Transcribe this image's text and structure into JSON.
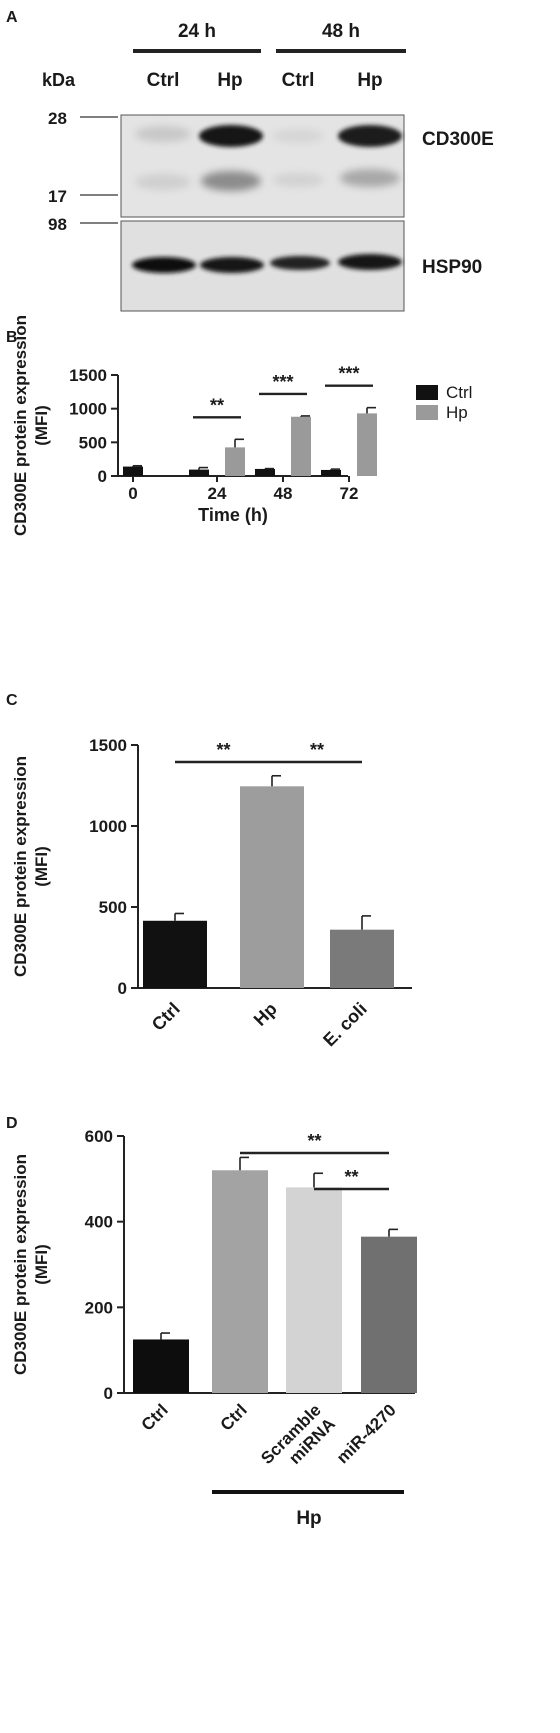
{
  "panel_a": {
    "letter": "A",
    "kda_label": "kDa",
    "time_groups": [
      "24 h",
      "48 h"
    ],
    "lanes": [
      "Ctrl",
      "Hp",
      "Ctrl",
      "Hp"
    ],
    "marker_upper": [
      "28",
      "17"
    ],
    "marker_lower": [
      "98"
    ],
    "band_upper": "CD300E",
    "band_lower": "HSP90"
  },
  "chart_data": [
    {
      "panel": "B",
      "type": "bar",
      "categories": [
        "0",
        "24",
        "48",
        "72"
      ],
      "series": [
        {
          "name": "Ctrl",
          "values": [
            140,
            95,
            105,
            90
          ],
          "errors": [
            12,
            30,
            5,
            12
          ],
          "color": "#111111"
        },
        {
          "name": "Hp",
          "values": [
            null,
            425,
            880,
            930
          ],
          "errors": [
            null,
            120,
            12,
            85
          ],
          "color": "#9a9a9a"
        }
      ],
      "xlabel": "Time (h)",
      "ylabel": "CD300E protein expression (MFI)",
      "ylim": [
        0,
        1500
      ],
      "yticks": [
        "0",
        "500",
        "1000",
        "1500"
      ],
      "legend": "top-right",
      "significance": [
        {
          "category": "24",
          "label": "**"
        },
        {
          "category": "48",
          "label": "***"
        },
        {
          "category": "72",
          "label": "***"
        }
      ]
    },
    {
      "panel": "C",
      "type": "bar",
      "categories": [
        "Ctrl",
        "Hp",
        "E. coli"
      ],
      "values": [
        415,
        1245,
        360
      ],
      "errors": [
        45,
        65,
        85
      ],
      "colors": [
        "#111111",
        "#9d9d9d",
        "#7a7a7a"
      ],
      "ylabel": "CD300E protein expression (MFI)",
      "ylim": [
        0,
        1500
      ],
      "yticks": [
        "0",
        "500",
        "1000",
        "1500"
      ],
      "significance": [
        {
          "from": "Ctrl",
          "to": "Hp",
          "label": "**"
        },
        {
          "from": "Hp",
          "to": "E. coli",
          "label": "**"
        }
      ]
    },
    {
      "panel": "D",
      "type": "bar",
      "categories": [
        "Ctrl",
        "Ctrl",
        "Scramble miRNA",
        "miR-4270"
      ],
      "values": [
        125,
        520,
        480,
        365
      ],
      "errors": [
        15,
        30,
        33,
        17
      ],
      "colors": [
        "#0d0d0d",
        "#a3a3a3",
        "#d3d3d3",
        "#707070"
      ],
      "ylabel": "CD300E protein expression (MFI)",
      "ylim": [
        0,
        600
      ],
      "yticks": [
        "0",
        "200",
        "400",
        "600"
      ],
      "group_label": "Hp",
      "significance": [
        {
          "from": "Ctrl",
          "to": "miR-4270",
          "label": "**"
        },
        {
          "from": "Scramble miRNA",
          "to": "miR-4270",
          "label": "**"
        }
      ]
    }
  ]
}
